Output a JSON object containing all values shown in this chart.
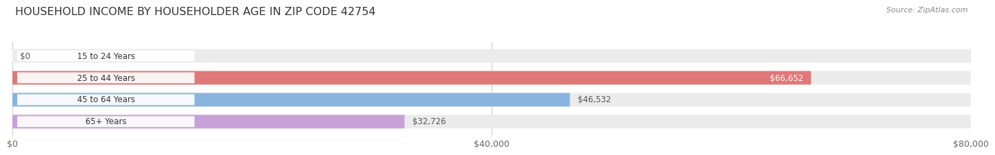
{
  "title": "HOUSEHOLD INCOME BY HOUSEHOLDER AGE IN ZIP CODE 42754",
  "source": "Source: ZipAtlas.com",
  "categories": [
    "15 to 24 Years",
    "25 to 44 Years",
    "45 to 64 Years",
    "65+ Years"
  ],
  "values": [
    0,
    66652,
    46532,
    32726
  ],
  "bar_colors": [
    "#f5c98a",
    "#e07878",
    "#8ab4e0",
    "#c8a0d8"
  ],
  "value_labels": [
    "$0",
    "$66,652",
    "$46,532",
    "$32,726"
  ],
  "value_label_inside": [
    false,
    true,
    false,
    false
  ],
  "xlim": [
    0,
    80000
  ],
  "xticks": [
    0,
    40000,
    80000
  ],
  "xtick_labels": [
    "$0",
    "$40,000",
    "$80,000"
  ],
  "background_color": "#ffffff",
  "bar_background": "#ebebeb",
  "title_fontsize": 11.5,
  "bar_height": 0.62,
  "figsize": [
    14.06,
    2.33
  ]
}
